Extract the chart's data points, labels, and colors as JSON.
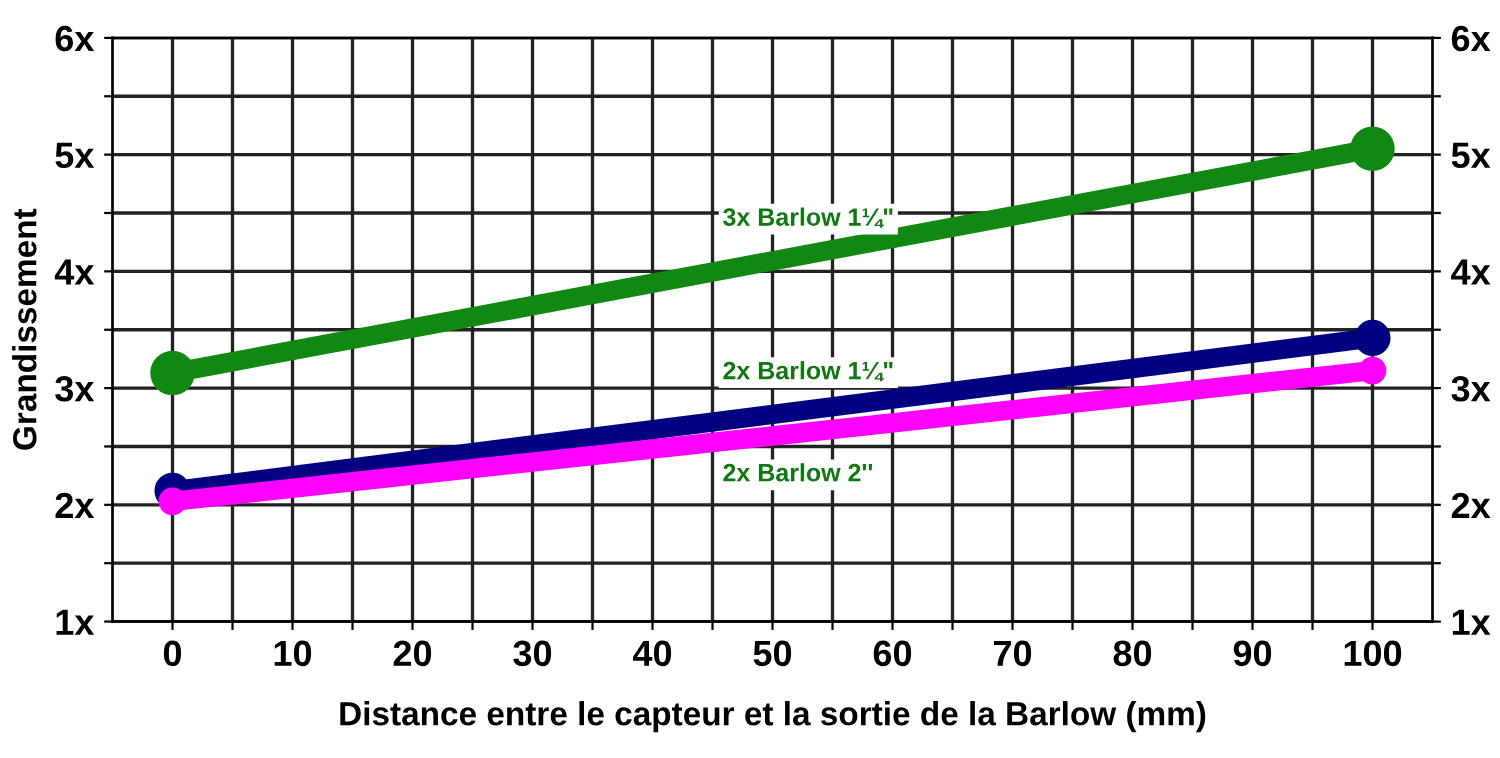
{
  "chart_data": {
    "type": "line",
    "xlabel": "Distance entre le capteur et la sortie de la Barlow (mm)",
    "ylabel": "Grandissement",
    "x": [
      0,
      100
    ],
    "series": [
      {
        "name": "3x Barlow 1¼\"",
        "color": "#118811",
        "values": [
          3.13,
          5.05
        ]
      },
      {
        "name": "2x Barlow 1¼\"",
        "color": "#000080",
        "values": [
          2.12,
          3.43
        ]
      },
      {
        "name": "2x Barlow 2''",
        "color": "#ff00ff",
        "values": [
          2.03,
          3.15
        ]
      }
    ],
    "xlim": [
      -5,
      105
    ],
    "xticks": [
      0,
      {
        "value": 5,
        "label": null
      },
      10,
      {
        "value": 15,
        "label": null
      },
      20,
      {
        "value": 25,
        "label": null
      },
      30,
      {
        "value": 35,
        "label": null
      },
      40,
      {
        "value": 45,
        "label": null
      },
      50,
      {
        "value": 55,
        "label": null
      },
      60,
      {
        "value": 65,
        "label": null
      },
      70,
      {
        "value": 75,
        "label": null
      },
      80,
      {
        "value": 85,
        "label": null
      },
      90,
      {
        "value": 95,
        "label": null
      },
      100
    ],
    "ylim": [
      1,
      6
    ],
    "yticks": [
      {
        "value": 1,
        "label": "1x"
      },
      {
        "value": 1.5,
        "label": null
      },
      {
        "value": 2,
        "label": "2x"
      },
      {
        "value": 2.5,
        "label": null
      },
      {
        "value": 3,
        "label": "3x"
      },
      {
        "value": 3.5,
        "label": null
      },
      {
        "value": 4,
        "label": "4x"
      },
      {
        "value": 4.5,
        "label": null
      },
      {
        "value": 5,
        "label": "5x"
      },
      {
        "value": 5.5,
        "label": null
      },
      {
        "value": 6,
        "label": "6x"
      }
    ],
    "y2lim": [
      1,
      6
    ],
    "y2ticks": [
      {
        "value": 1,
        "label": "1x"
      },
      {
        "value": 1.5,
        "label": null
      },
      {
        "value": 2,
        "label": "2x"
      },
      {
        "value": 2.5,
        "label": null
      },
      {
        "value": 3,
        "label": "3x"
      },
      {
        "value": 3.5,
        "label": null
      },
      {
        "value": 4,
        "label": "4x"
      },
      {
        "value": 4.5,
        "label": null
      },
      {
        "value": 5,
        "label": "5x"
      },
      {
        "value": 5.5,
        "label": null
      },
      {
        "value": 6,
        "label": "6x"
      }
    ],
    "grid": true,
    "legend": false,
    "marker": "circle",
    "line_style": "solid"
  }
}
